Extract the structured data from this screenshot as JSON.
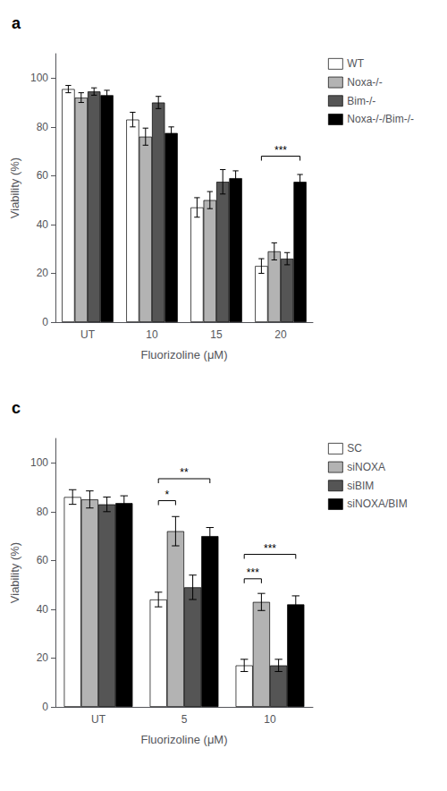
{
  "chart_data": [
    {
      "type": "bar",
      "title": "a",
      "categories": [
        "UT",
        "10",
        "15",
        "20"
      ],
      "series": [
        {
          "name": "WT",
          "color": "white",
          "values": [
            95.5,
            83.0,
            47.0,
            23.0
          ],
          "errors": [
            1.5,
            3.0,
            4.0,
            3.0
          ]
        },
        {
          "name": "Noxa-/-",
          "color": "#b3b3b3",
          "values": [
            92.0,
            76.0,
            50.0,
            29.0
          ],
          "errors": [
            2.0,
            3.5,
            3.5,
            3.5
          ]
        },
        {
          "name": "Bim-/-",
          "color": "#555555",
          "values": [
            94.5,
            90.0,
            57.5,
            26.0
          ],
          "errors": [
            1.5,
            2.5,
            5.0,
            2.5
          ]
        },
        {
          "name": "Noxa-/-/Bim-/-",
          "color": "#000000",
          "values": [
            93.0,
            77.5,
            59.0,
            57.5
          ],
          "errors": [
            2.0,
            2.5,
            3.0,
            3.0
          ]
        }
      ],
      "xlabel": "Fluorizoline (μM)",
      "ylabel": "Viability (%)",
      "ylim": [
        0,
        110
      ],
      "yticks": [
        0,
        20,
        40,
        60,
        80,
        100
      ],
      "grid": false,
      "legend": "right",
      "annotations": [
        {
          "text": "***",
          "category": "20",
          "from": "WT",
          "to": "Noxa-/-/Bim-/-",
          "y": 68
        }
      ]
    },
    {
      "type": "bar",
      "title": "c",
      "categories": [
        "UT",
        "5",
        "10"
      ],
      "series": [
        {
          "name": "SC",
          "color": "white",
          "values": [
            86.0,
            44.0,
            17.0
          ],
          "errors": [
            3.0,
            3.0,
            2.5
          ]
        },
        {
          "name": "siNOXA",
          "color": "#b3b3b3",
          "values": [
            85.0,
            72.0,
            43.0
          ],
          "errors": [
            3.5,
            6.0,
            3.5
          ]
        },
        {
          "name": "siBIM",
          "color": "#555555",
          "values": [
            83.0,
            49.0,
            17.0
          ],
          "errors": [
            3.0,
            5.0,
            2.5
          ]
        },
        {
          "name": "siNOXA/BIM",
          "color": "#000000",
          "values": [
            83.5,
            70.0,
            42.0
          ],
          "errors": [
            3.0,
            3.5,
            3.5
          ]
        }
      ],
      "xlabel": "Fluorizoline (μM)",
      "ylabel": "Viability (%)",
      "ylim": [
        0,
        110
      ],
      "yticks": [
        0,
        20,
        40,
        60,
        80,
        100
      ],
      "grid": false,
      "legend": "right",
      "annotations": [
        {
          "text": "*",
          "category": "5",
          "from": "SC",
          "to": "siNOXA",
          "y": 84.5
        },
        {
          "text": "**",
          "category": "5",
          "from": "SC",
          "to": "siNOXA/BIM",
          "y": 93.5
        },
        {
          "text": "***",
          "category": "10",
          "from": "SC",
          "to": "siNOXA",
          "y": 52.5
        },
        {
          "text": "***",
          "category": "10",
          "from": "SC",
          "to": "siNOXA/BIM",
          "y": 62.5
        }
      ]
    }
  ]
}
